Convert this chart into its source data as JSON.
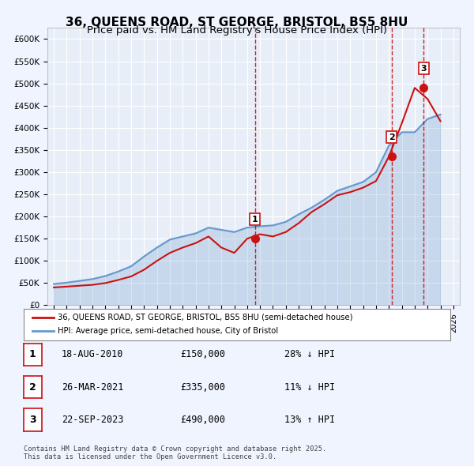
{
  "title": "36, QUEENS ROAD, ST GEORGE, BRISTOL, BS5 8HU",
  "subtitle": "Price paid vs. HM Land Registry's House Price Index (HPI)",
  "title_fontsize": 11,
  "subtitle_fontsize": 9.5,
  "background_color": "#f0f4ff",
  "plot_bg_color": "#e8eef8",
  "hpi_years": [
    1995,
    1996,
    1997,
    1998,
    1999,
    2000,
    2001,
    2002,
    2003,
    2004,
    2005,
    2006,
    2007,
    2008,
    2009,
    2010,
    2011,
    2012,
    2013,
    2014,
    2015,
    2016,
    2017,
    2018,
    2019,
    2020,
    2021,
    2022,
    2023,
    2024,
    2025
  ],
  "hpi_values": [
    48000,
    51000,
    55000,
    59000,
    66000,
    76000,
    88000,
    110000,
    130000,
    148000,
    155000,
    162000,
    175000,
    170000,
    165000,
    175000,
    178000,
    180000,
    188000,
    205000,
    220000,
    238000,
    258000,
    268000,
    278000,
    300000,
    360000,
    390000,
    390000,
    420000,
    430000
  ],
  "red_years": [
    1995,
    1996,
    1997,
    1998,
    1999,
    2000,
    2001,
    2002,
    2003,
    2004,
    2005,
    2006,
    2007,
    2008,
    2009,
    2010,
    2011,
    2012,
    2013,
    2014,
    2015,
    2016,
    2017,
    2018,
    2019,
    2020,
    2021,
    2022,
    2023,
    2024,
    2025
  ],
  "red_values": [
    40000,
    42000,
    44000,
    46000,
    50000,
    57000,
    65000,
    80000,
    100000,
    118000,
    130000,
    140000,
    155000,
    130000,
    118000,
    150000,
    160000,
    155000,
    165000,
    185000,
    210000,
    228000,
    248000,
    255000,
    265000,
    280000,
    335000,
    410000,
    490000,
    465000,
    415000
  ],
  "sale_points": [
    {
      "year": 2010.6,
      "price": 150000,
      "label": "1",
      "hpi_diff": "28% ↓ HPI",
      "date": "18-AUG-2010"
    },
    {
      "year": 2021.2,
      "price": 335000,
      "label": "2",
      "hpi_diff": "11% ↓ HPI",
      "date": "26-MAR-2021"
    },
    {
      "year": 2023.7,
      "price": 490000,
      "label": "3",
      "hpi_diff": "13% ↑ HPI",
      "date": "22-SEP-2023"
    }
  ],
  "vline_years": [
    2010.6,
    2021.2,
    2023.7
  ],
  "vline_color": "#cc0000",
  "red_line_color": "#cc1111",
  "blue_line_color": "#6699cc",
  "point_color": "#cc1111",
  "ylim": [
    0,
    625000
  ],
  "xlim": [
    1994.5,
    2026.5
  ],
  "yticks": [
    0,
    50000,
    100000,
    150000,
    200000,
    250000,
    300000,
    350000,
    400000,
    450000,
    500000,
    550000,
    600000
  ],
  "ytick_labels": [
    "£0",
    "£50K",
    "£100K",
    "£150K",
    "£200K",
    "£250K",
    "£300K",
    "£350K",
    "£400K",
    "£450K",
    "£500K",
    "£550K",
    "£600K"
  ],
  "xticks": [
    1995,
    1996,
    1997,
    1998,
    1999,
    2000,
    2001,
    2002,
    2003,
    2004,
    2005,
    2006,
    2007,
    2008,
    2009,
    2010,
    2011,
    2012,
    2013,
    2014,
    2015,
    2016,
    2017,
    2018,
    2019,
    2020,
    2021,
    2022,
    2023,
    2024,
    2025,
    2026
  ],
  "legend_red_label": "36, QUEENS ROAD, ST GEORGE, BRISTOL, BS5 8HU (semi-detached house)",
  "legend_blue_label": "HPI: Average price, semi-detached house, City of Bristol",
  "table_rows": [
    {
      "num": "1",
      "date": "18-AUG-2010",
      "price": "£150,000",
      "hpi": "28% ↓ HPI"
    },
    {
      "num": "2",
      "date": "26-MAR-2021",
      "price": "£335,000",
      "hpi": "11% ↓ HPI"
    },
    {
      "num": "3",
      "date": "22-SEP-2023",
      "price": "£490,000",
      "hpi": "13% ↑ HPI"
    }
  ],
  "footnote": "Contains HM Land Registry data © Crown copyright and database right 2025.\nThis data is licensed under the Open Government Licence v3.0."
}
